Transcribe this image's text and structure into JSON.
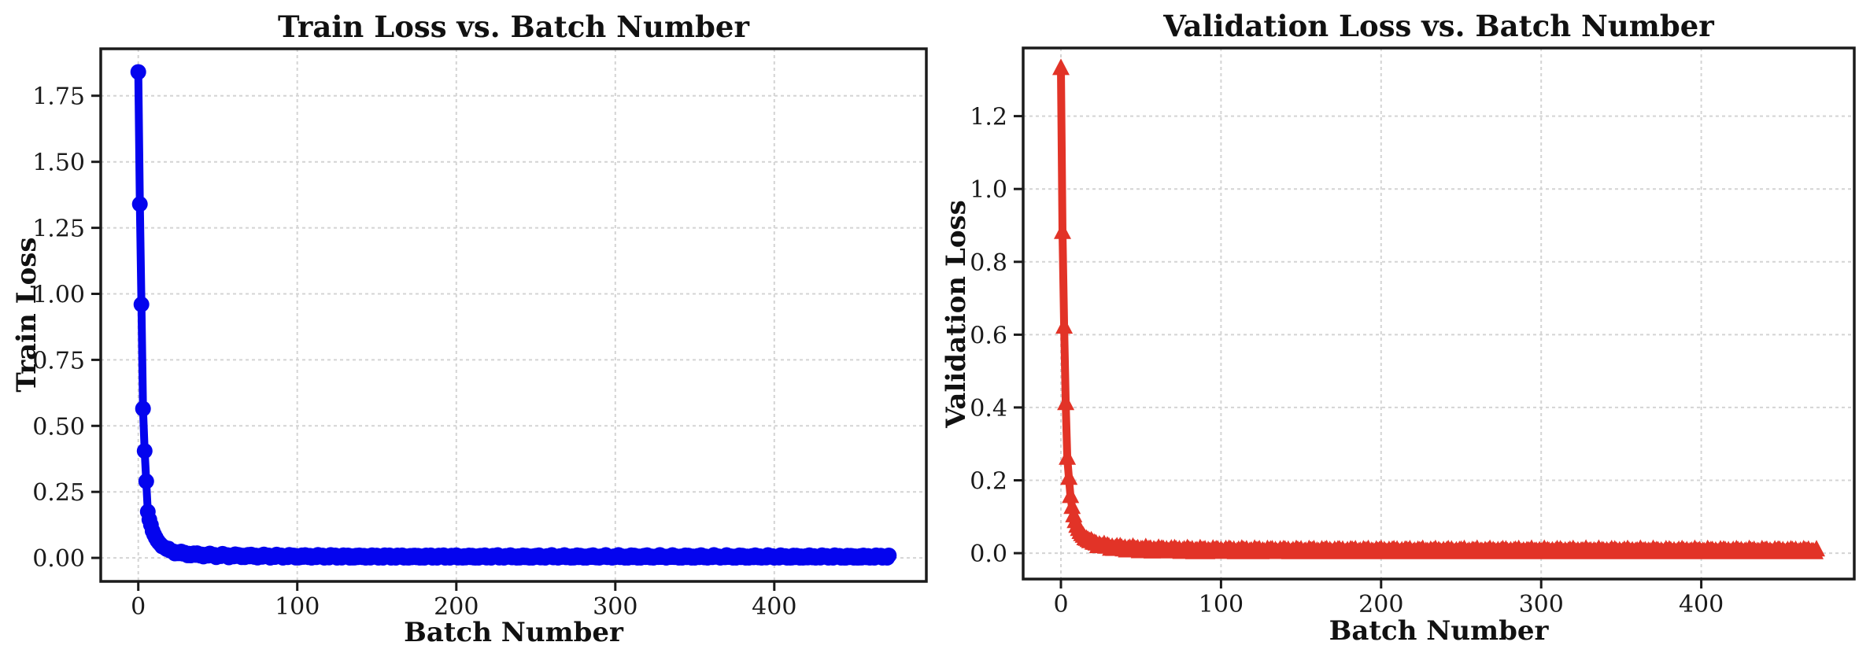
{
  "page": {
    "background": "#FFFFFF"
  },
  "colors": {
    "grid": "#D4D4D4",
    "axis": "#1B1B1B",
    "text": "#1A1A1A",
    "train": "#0404EE",
    "validation": "#E23327"
  },
  "chart_data": [
    {
      "type": "line",
      "title": "Train Loss vs. Batch Number",
      "xlabel": "Batch Number",
      "ylabel": "Train Loss",
      "legend": null,
      "grid": "dashed",
      "x_ticks": [
        "0",
        "100",
        "200",
        "300",
        "400"
      ],
      "x_tick_values": [
        0,
        100,
        200,
        300,
        400
      ],
      "y_ticks": [
        "0.00",
        "0.25",
        "0.50",
        "0.75",
        "1.00",
        "1.25",
        "1.50",
        "1.75"
      ],
      "y_tick_values": [
        0,
        0.25,
        0.5,
        0.75,
        1.0,
        1.25,
        1.5,
        1.75
      ],
      "xlim": [
        -23.6,
        495.6
      ],
      "ylim": [
        -0.089,
        1.928
      ],
      "x_max": 472,
      "tail_jitter": 0.007,
      "series": [
        {
          "name": "train-loss",
          "color": "#0404EE",
          "marker": "circle",
          "anchors": [
            [
              0,
              1.84
            ],
            [
              1,
              1.34
            ],
            [
              2,
              0.96
            ],
            [
              3,
              0.565
            ],
            [
              4,
              0.405
            ],
            [
              5,
              0.29
            ],
            [
              6,
              0.175
            ],
            [
              7,
              0.145
            ],
            [
              8,
              0.125
            ],
            [
              9,
              0.102
            ],
            [
              10,
              0.088
            ],
            [
              11,
              0.076
            ],
            [
              12,
              0.066
            ],
            [
              13,
              0.058
            ],
            [
              14,
              0.051
            ],
            [
              15,
              0.046
            ],
            [
              16,
              0.041
            ],
            [
              17,
              0.037
            ],
            [
              18,
              0.034
            ],
            [
              19,
              0.031
            ],
            [
              20,
              0.028
            ],
            [
              22,
              0.024
            ],
            [
              24,
              0.021
            ],
            [
              26,
              0.019
            ],
            [
              28,
              0.017
            ],
            [
              30,
              0.0155
            ],
            [
              35,
              0.013
            ],
            [
              40,
              0.0115
            ],
            [
              45,
              0.0102
            ],
            [
              50,
              0.0092
            ],
            [
              60,
              0.008
            ],
            [
              70,
              0.0072
            ],
            [
              85,
              0.0064
            ],
            [
              100,
              0.0058
            ],
            [
              130,
              0.0052
            ],
            [
              160,
              0.0048
            ],
            [
              200,
              0.0046
            ],
            [
              250,
              0.0044
            ],
            [
              300,
              0.0043
            ],
            [
              350,
              0.0042
            ],
            [
              400,
              0.0041
            ],
            [
              472,
              0.004
            ]
          ]
        }
      ]
    },
    {
      "type": "line",
      "title": "Validation Loss vs. Batch Number",
      "xlabel": "Batch Number",
      "ylabel": "Validation Loss",
      "legend": null,
      "grid": "dashed",
      "x_ticks": [
        "0",
        "100",
        "200",
        "300",
        "400"
      ],
      "x_tick_values": [
        0,
        100,
        200,
        300,
        400
      ],
      "y_ticks": [
        "0.0",
        "0.2",
        "0.4",
        "0.6",
        "0.8",
        "1.0",
        "1.2"
      ],
      "y_tick_values": [
        0,
        0.2,
        0.4,
        0.6,
        0.8,
        1.0,
        1.2
      ],
      "xlim": [
        -23.6,
        495.6
      ],
      "ylim": [
        -0.071,
        1.387
      ],
      "x_max": 472,
      "tail_jitter": 0.006,
      "series": [
        {
          "name": "validation-loss",
          "color": "#E23327",
          "marker": "triangle-up",
          "anchors": [
            [
              0,
              1.33
            ],
            [
              1,
              0.88
            ],
            [
              2,
              0.62
            ],
            [
              3,
              0.41
            ],
            [
              4,
              0.26
            ],
            [
              5,
              0.205
            ],
            [
              6,
              0.155
            ],
            [
              7,
              0.125
            ],
            [
              8,
              0.102
            ],
            [
              9,
              0.086
            ],
            [
              10,
              0.073
            ],
            [
              11,
              0.064
            ],
            [
              12,
              0.0565
            ],
            [
              13,
              0.0505
            ],
            [
              14,
              0.0455
            ],
            [
              15,
              0.0412
            ],
            [
              16,
              0.0375
            ],
            [
              17,
              0.0345
            ],
            [
              18,
              0.0318
            ],
            [
              19,
              0.0295
            ],
            [
              20,
              0.0275
            ],
            [
              22,
              0.0238
            ],
            [
              24,
              0.0209
            ],
            [
              26,
              0.0186
            ],
            [
              28,
              0.0168
            ],
            [
              30,
              0.0153
            ],
            [
              35,
              0.0128
            ],
            [
              40,
              0.0112
            ],
            [
              45,
              0.01
            ],
            [
              50,
              0.0091
            ],
            [
              60,
              0.0078
            ],
            [
              70,
              0.007
            ],
            [
              85,
              0.0062
            ],
            [
              100,
              0.0057
            ],
            [
              130,
              0.0051
            ],
            [
              160,
              0.0047
            ],
            [
              200,
              0.0045
            ],
            [
              250,
              0.0043
            ],
            [
              300,
              0.0042
            ],
            [
              350,
              0.0041
            ],
            [
              400,
              0.004
            ],
            [
              472,
              0.004
            ]
          ]
        }
      ]
    }
  ]
}
